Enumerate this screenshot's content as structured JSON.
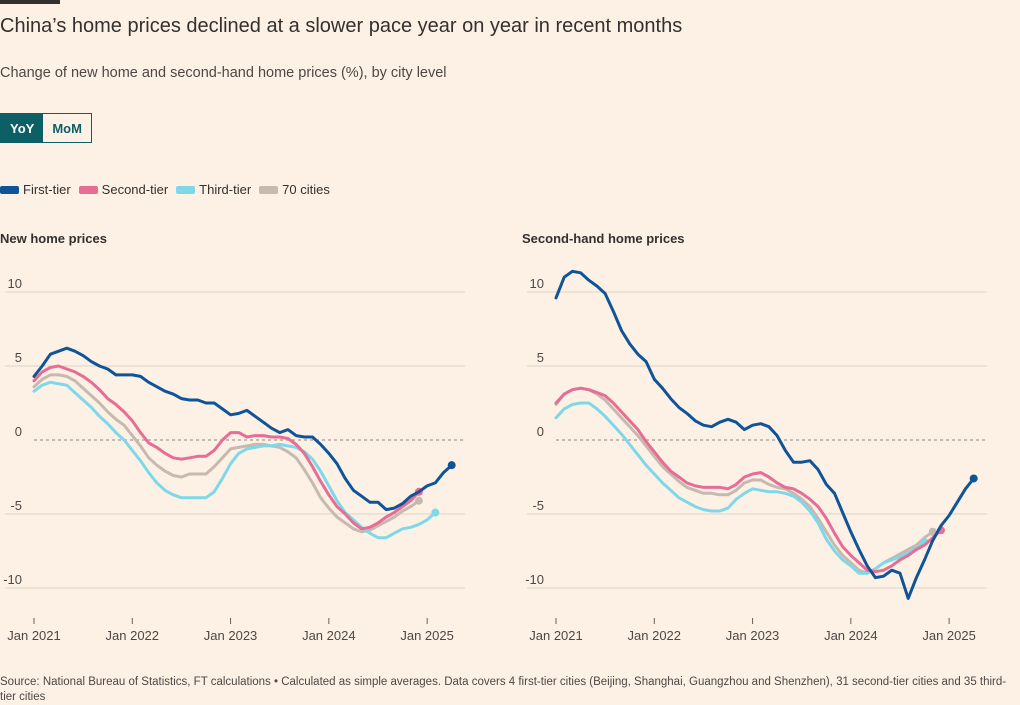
{
  "header": {
    "title": "China’s home prices declined at a slower pace year on year in recent months",
    "subtitle": "Change of new home and second-hand home prices (%), by city level"
  },
  "toggle": {
    "yoy_label": "YoY",
    "mom_label": "MoM",
    "selected": "YoY"
  },
  "legend": [
    {
      "label": "First-tier",
      "color": "#0f5499"
    },
    {
      "label": "Second-tier",
      "color": "#e86d94"
    },
    {
      "label": "Third-tier",
      "color": "#7ed8ea"
    },
    {
      "label": "70 cities",
      "color": "#c6b9b0"
    }
  ],
  "source": "Source: National Bureau of Statistics, FT calculations • Calculated as simple averages. Data covers 4 first-tier cities (Beijing, Shanghai, Guangzhou and Shenzhen), 31 second-tier cities and 35 third-tier cities",
  "chart_data": [
    {
      "type": "line",
      "title": "New home prices",
      "x_start": "2021-01",
      "x_step": "1 month",
      "xticks": [
        "Jan 2021",
        "Jan 2022",
        "Jan 2023",
        "Jan 2024",
        "Jan 2025"
      ],
      "yticks": [
        10,
        5,
        0,
        -5,
        -10
      ],
      "ylim": [
        -11,
        11
      ],
      "zero_line": "dashed",
      "series": [
        {
          "name": "First-tier",
          "color": "#0f5499",
          "values": [
            4.3,
            5.0,
            5.8,
            6.0,
            6.2,
            6.0,
            5.7,
            5.3,
            5.0,
            4.8,
            4.4,
            4.4,
            4.4,
            4.3,
            3.9,
            3.6,
            3.3,
            3.1,
            2.8,
            2.7,
            2.7,
            2.5,
            2.5,
            2.1,
            1.7,
            1.8,
            2.0,
            1.6,
            1.2,
            0.8,
            0.5,
            0.7,
            0.3,
            0.2,
            0.2,
            -0.3,
            -0.9,
            -1.6,
            -2.6,
            -3.4,
            -3.8,
            -4.2,
            -4.2,
            -4.7,
            -4.6,
            -4.3,
            -3.8,
            -3.5,
            -3.1,
            -2.9,
            -2.2,
            -1.7
          ]
        },
        {
          "name": "Second-tier",
          "color": "#e86d94",
          "values": [
            4.0,
            4.6,
            4.9,
            5.0,
            4.8,
            4.6,
            4.3,
            3.9,
            3.4,
            2.8,
            2.4,
            1.9,
            1.3,
            0.5,
            -0.2,
            -0.5,
            -0.9,
            -1.2,
            -1.3,
            -1.2,
            -1.1,
            -1.1,
            -0.7,
            0.0,
            0.5,
            0.5,
            0.2,
            0.3,
            0.3,
            0.2,
            0.2,
            0.1,
            -0.3,
            -0.9,
            -1.8,
            -2.8,
            -3.7,
            -4.5,
            -5.0,
            -5.6,
            -6.0,
            -5.9,
            -5.6,
            -5.2,
            -4.9,
            -4.5,
            -4.1,
            -3.5
          ]
        },
        {
          "name": "Third-tier",
          "color": "#7ed8ea",
          "values": [
            3.3,
            3.7,
            3.9,
            3.8,
            3.7,
            3.2,
            2.7,
            2.2,
            1.6,
            1.1,
            0.5,
            0.0,
            -0.7,
            -1.4,
            -2.2,
            -2.9,
            -3.4,
            -3.7,
            -3.9,
            -3.9,
            -3.9,
            -3.9,
            -3.5,
            -2.6,
            -1.6,
            -0.9,
            -0.6,
            -0.5,
            -0.4,
            -0.4,
            -0.3,
            -0.4,
            -0.5,
            -0.8,
            -1.3,
            -2.1,
            -3.1,
            -4.1,
            -4.9,
            -5.4,
            -5.9,
            -6.3,
            -6.6,
            -6.6,
            -6.3,
            -6.0,
            -5.9,
            -5.7,
            -5.4,
            -4.9
          ]
        },
        {
          "name": "70 cities",
          "color": "#c6b9b0",
          "values": [
            3.6,
            4.1,
            4.4,
            4.4,
            4.3,
            4.0,
            3.5,
            3.0,
            2.5,
            1.9,
            1.4,
            1.0,
            0.3,
            -0.4,
            -1.2,
            -1.7,
            -2.1,
            -2.4,
            -2.5,
            -2.3,
            -2.3,
            -2.3,
            -1.8,
            -1.2,
            -0.6,
            -0.5,
            -0.4,
            -0.3,
            -0.3,
            -0.4,
            -0.5,
            -0.8,
            -1.2,
            -2.0,
            -2.9,
            -3.9,
            -4.6,
            -5.2,
            -5.6,
            -6.0,
            -6.2,
            -6.1,
            -5.8,
            -5.5,
            -5.2,
            -4.8,
            -4.5,
            -4.1
          ]
        }
      ]
    },
    {
      "type": "line",
      "title": "Second-hand home prices",
      "x_start": "2021-01",
      "x_step": "1 month",
      "xticks": [
        "Jan 2021",
        "Jan 2022",
        "Jan 2023",
        "Jan 2024",
        "Jan 2025"
      ],
      "yticks": [
        10,
        5,
        0,
        -5,
        -10
      ],
      "ylim": [
        -11,
        11
      ],
      "zero_line": "dashed",
      "series": [
        {
          "name": "First-tier",
          "color": "#0f5499",
          "values": [
            9.6,
            11.0,
            11.4,
            11.3,
            10.8,
            10.4,
            9.9,
            8.7,
            7.4,
            6.5,
            5.8,
            5.3,
            4.1,
            3.5,
            2.8,
            2.2,
            1.8,
            1.3,
            1.0,
            0.9,
            1.2,
            1.4,
            1.2,
            0.7,
            1.0,
            1.1,
            0.9,
            0.3,
            -0.7,
            -1.5,
            -1.5,
            -1.4,
            -2.0,
            -3.0,
            -3.6,
            -4.9,
            -6.2,
            -7.4,
            -8.5,
            -9.3,
            -9.2,
            -8.8,
            -9.0,
            -10.7,
            -9.3,
            -8.1,
            -6.8,
            -5.8,
            -5.1,
            -4.2,
            -3.3,
            -2.6
          ]
        },
        {
          "name": "Second-tier",
          "color": "#e86d94",
          "values": [
            2.5,
            3.1,
            3.4,
            3.5,
            3.4,
            3.2,
            3.0,
            2.5,
            1.9,
            1.3,
            0.7,
            -0.1,
            -0.8,
            -1.5,
            -2.1,
            -2.5,
            -2.9,
            -3.1,
            -3.2,
            -3.2,
            -3.2,
            -3.3,
            -3.0,
            -2.5,
            -2.3,
            -2.2,
            -2.5,
            -2.9,
            -3.2,
            -3.3,
            -3.6,
            -4.0,
            -4.5,
            -5.3,
            -6.3,
            -7.2,
            -7.8,
            -8.3,
            -8.8,
            -8.9,
            -8.8,
            -8.5,
            -8.1,
            -7.8,
            -7.4,
            -7.1,
            -6.6,
            -6.1
          ]
        },
        {
          "name": "Third-tier",
          "color": "#7ed8ea",
          "values": [
            1.5,
            2.1,
            2.4,
            2.5,
            2.5,
            2.1,
            1.6,
            1.0,
            0.4,
            -0.3,
            -1.0,
            -1.7,
            -2.3,
            -2.9,
            -3.4,
            -3.9,
            -4.2,
            -4.5,
            -4.7,
            -4.8,
            -4.8,
            -4.6,
            -4.0,
            -3.6,
            -3.3,
            -3.4,
            -3.5,
            -3.5,
            -3.6,
            -3.8,
            -4.2,
            -4.8,
            -5.6,
            -6.7,
            -7.5,
            -8.1,
            -8.5,
            -9.0,
            -9.0,
            -8.7,
            -8.3,
            -8.1,
            -7.9,
            -7.6,
            -7.3,
            -6.9
          ]
        },
        {
          "name": "70 cities",
          "color": "#c6b9b0",
          "values": [
            2.4,
            3.1,
            3.4,
            3.5,
            3.4,
            3.1,
            2.7,
            2.1,
            1.5,
            0.9,
            0.3,
            -0.4,
            -1.1,
            -1.8,
            -2.3,
            -2.8,
            -3.2,
            -3.4,
            -3.6,
            -3.6,
            -3.7,
            -3.7,
            -3.4,
            -2.9,
            -2.7,
            -2.7,
            -3.0,
            -3.2,
            -3.3,
            -3.6,
            -4.0,
            -4.5,
            -5.3,
            -6.2,
            -7.1,
            -7.8,
            -8.3,
            -8.8,
            -9.0,
            -8.7,
            -8.3,
            -8.0,
            -7.7,
            -7.4,
            -7.1,
            -6.6,
            -6.2
          ]
        }
      ]
    }
  ]
}
